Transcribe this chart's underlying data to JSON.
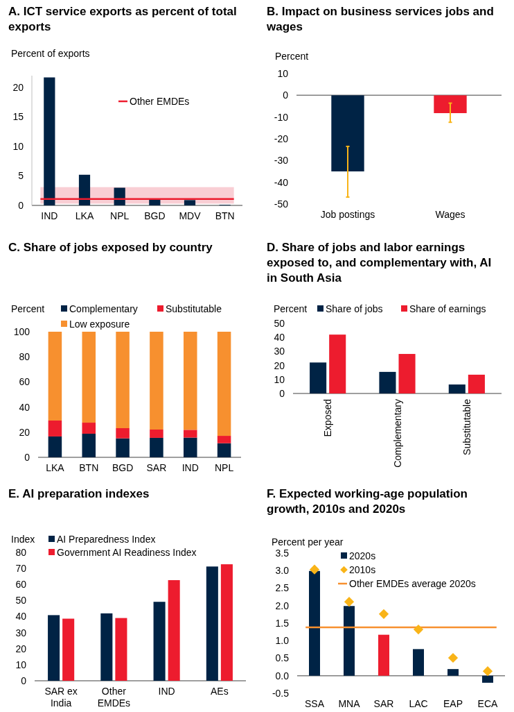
{
  "chart_data": [
    {
      "type": "bar",
      "title": "A. ICT service exports as percent of total exports",
      "ylabel": "Percent of exports",
      "categories": [
        "IND",
        "LKA",
        "NPL",
        "BGD",
        "MDV",
        "BTN"
      ],
      "series": [
        {
          "color": "#002345",
          "values": [
            21.7,
            5.2,
            3.0,
            1.1,
            0.9,
            0.1
          ]
        }
      ],
      "ylim": [
        0,
        22
      ],
      "yticks": [
        0,
        5,
        10,
        15,
        20
      ],
      "ref_lines": [
        {
          "axis": "y",
          "value": 1.1,
          "label": "Other EMDEs",
          "color": "#ed1c2e"
        }
      ],
      "bands": [
        {
          "axis": "y",
          "from": 0.3,
          "to": 3.1,
          "color": "#f9ced4"
        }
      ],
      "legend": "top right"
    },
    {
      "type": "bar",
      "title": "B. Impact on business services jobs and wages",
      "ylabel": "Percent",
      "categories": [
        "Job postings",
        "Wages"
      ],
      "series": [
        {
          "colors": [
            "#002345",
            "#ed1c2e"
          ],
          "values": [
            -35,
            -8.2
          ],
          "errors": [
            [
              -46.8,
              -23.5
            ],
            [
              -12.4,
              -3.6
            ]
          ]
        }
      ],
      "ylim": [
        -50,
        10
      ],
      "yticks": [
        -50,
        -40,
        -30,
        -20,
        -10,
        0,
        10
      ]
    },
    {
      "type": "bar",
      "stacked": true,
      "title": "C. Share of jobs exposed by country",
      "ylabel": "Percent",
      "categories": [
        "LKA",
        "BTN",
        "BGD",
        "SAR",
        "IND",
        "NPL"
      ],
      "series": [
        {
          "name": "Complementary",
          "color": "#002345",
          "values": [
            16.6,
            18.8,
            15.1,
            15.5,
            15.7,
            11.2
          ]
        },
        {
          "name": "Substitutable",
          "color": "#ed1c2e",
          "values": [
            12.7,
            8.8,
            8.1,
            6.6,
            6.2,
            5.9
          ]
        },
        {
          "name": "Low exposure",
          "color": "#f7902f",
          "values": [
            70.7,
            72.4,
            76.8,
            77.9,
            78.1,
            82.9
          ]
        }
      ],
      "ylim": [
        0,
        100
      ],
      "yticks": [
        0,
        20,
        40,
        60,
        80,
        100
      ],
      "legend": "top"
    },
    {
      "type": "bar",
      "title": "D. Share of jobs and labor earnings exposed to, and complementary with, AI in South Asia",
      "ylabel": "Percent",
      "categories": [
        "Exposed",
        "Complementary",
        "Substitutable"
      ],
      "series": [
        {
          "name": "Share of jobs",
          "color": "#002345",
          "values": [
            22.1,
            15.4,
            6.4
          ]
        },
        {
          "name": "Share of earnings",
          "color": "#ed1c2e",
          "values": [
            42.0,
            28.2,
            13.4
          ]
        }
      ],
      "ylim": [
        0,
        50
      ],
      "yticks": [
        0,
        10,
        20,
        30,
        40,
        50
      ],
      "legend": "top"
    },
    {
      "type": "bar",
      "title": "E. AI preparation indexes",
      "ylabel": "Index",
      "categories": [
        "SAR ex India",
        "Other EMDEs",
        "IND",
        "AEs"
      ],
      "series": [
        {
          "name": "AI Preparedness Index",
          "color": "#002345",
          "values": [
            40.9,
            42.0,
            49.2,
            71.2
          ]
        },
        {
          "name": "Government AI Readiness Index",
          "color": "#ed1c2e",
          "values": [
            38.7,
            39.1,
            62.7,
            72.6
          ]
        }
      ],
      "ylim": [
        0,
        80
      ],
      "yticks": [
        0,
        10,
        20,
        30,
        40,
        50,
        60,
        70,
        80
      ],
      "legend": "top"
    },
    {
      "type": "bar",
      "title": "F. Expected working-age population growth, 2010s and 2020s",
      "ylabel": "Percent per year",
      "categories": [
        "SSA",
        "MNA",
        "SAR",
        "LAC",
        "EAP",
        "ECA"
      ],
      "series": [
        {
          "name": "2020s",
          "color": "#002345",
          "colors": [
            "#002345",
            "#002345",
            "#ed1c2e",
            "#002345",
            "#002345",
            "#002345"
          ],
          "values": [
            2.99,
            1.99,
            1.17,
            0.76,
            0.19,
            -0.2
          ]
        },
        {
          "name": "2010s",
          "type": "scatter",
          "marker": "diamond",
          "color": "#f9b418",
          "values": [
            3.03,
            2.11,
            1.76,
            1.32,
            0.51,
            0.13
          ]
        }
      ],
      "ref_lines": [
        {
          "axis": "y",
          "value": 1.38,
          "label": "Other EMDEs average 2020s",
          "color": "#f7902f"
        }
      ],
      "ylim": [
        -0.5,
        3.5
      ],
      "yticks": [
        {
          "value": -0.5,
          "label": "-0.5"
        },
        {
          "value": 0,
          "label": "0.0"
        },
        {
          "value": 0.5,
          "label": "0.5"
        },
        {
          "value": 1,
          "label": "1.0"
        },
        {
          "value": 1.5,
          "label": "1.5"
        },
        {
          "value": 2,
          "label": "2.0"
        },
        {
          "value": 2.5,
          "label": "2.5"
        },
        {
          "value": 3,
          "label": "3.0"
        },
        {
          "value": 3.5,
          "label": "3.5"
        }
      ],
      "legend": "top"
    }
  ]
}
